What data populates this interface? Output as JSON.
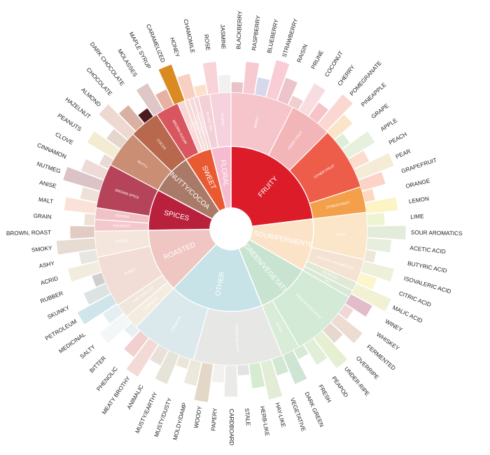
{
  "wheel": {
    "categories": [
      {
        "name": "FRUITY",
        "color": "#dd1c2a",
        "span": [
          0,
          83
        ],
        "subs": [
          {
            "name": "BERRY",
            "color": "#f6c5cb",
            "span": [
              0,
              27
            ]
          },
          {
            "name": "DRIED FRUIT",
            "color": "#f2b5b8",
            "span": [
              27,
              45
            ]
          },
          {
            "name": "OTHER FRUIT",
            "color": "#ee5c4a",
            "span": [
              45,
              72
            ]
          },
          {
            "name": "CITRUS FRUIT",
            "color": "#f4a04b",
            "span": [
              72,
              83
            ]
          }
        ]
      },
      {
        "name": "SOUR/FERMENTED",
        "color": "#fbe3c8",
        "span": [
          83,
          120
        ],
        "subs": [
          {
            "name": "SOUR",
            "color": "#fbe6c9",
            "span": [
              83,
              103
            ]
          },
          {
            "name": "ALCOHOL/FERMENTED",
            "color": "#f4e2d2",
            "span": [
              103,
              113
            ]
          },
          {
            "name": "OLIVE OIL",
            "color": "#dfe9d5",
            "span": [
              113,
              117
            ]
          },
          {
            "name": "RAW",
            "color": "#d9e8d6",
            "span": [
              117,
              120
            ]
          }
        ]
      },
      {
        "name": "GREEN/VEGETATIVE",
        "color": "#c8e3d0",
        "span": [
          120,
          158
        ],
        "subs": [
          {
            "name": "GREEN/VEGETATIVE",
            "color": "#d3ead6",
            "span": [
              120,
              150
            ]
          },
          {
            "name": "BEANY",
            "color": "#d8ecd8",
            "span": [
              150,
              158
            ]
          }
        ]
      },
      {
        "name": "OTHER",
        "color": "#c7e3e8",
        "span": [
          158,
          224
        ],
        "subs": [
          {
            "name": "PAPERY/MUSTY",
            "color": "#e7e7e6",
            "span": [
              158,
              196
            ]
          },
          {
            "name": "CHEMICAL",
            "color": "#dbe9ec",
            "span": [
              196,
              224
            ]
          }
        ]
      },
      {
        "name": "ROASTED",
        "color": "#efc6c2",
        "span": [
          224,
          269
        ],
        "subs": [
          {
            "name": "TOBACCO",
            "color": "#f4ecdf",
            "span": [
              224,
              230
            ]
          },
          {
            "name": "PIPE TOBACCO",
            "color": "#f1e6dc",
            "span": [
              230,
              236
            ]
          },
          {
            "name": "BURNT",
            "color": "#f1ddd6",
            "span": [
              236,
              258
            ]
          },
          {
            "name": "CEREAL",
            "color": "#f4e6dd",
            "span": [
              258,
              269
            ]
          }
        ]
      },
      {
        "name": "SPICES",
        "color": "#b9203c",
        "span": [
          269,
          298
        ],
        "subs": [
          {
            "name": "PUNGENT",
            "color": "#f3c8cc",
            "span": [
              269,
              274
            ]
          },
          {
            "name": "PEPPER",
            "color": "#f1c2c5",
            "span": [
              274,
              279
            ]
          },
          {
            "name": "BROWN SPICE",
            "color": "#b5445a",
            "span": [
              279,
              298
            ]
          }
        ]
      },
      {
        "name": "NUTTY/COCOA",
        "color": "#a97a68",
        "span": [
          298,
          327
        ],
        "subs": [
          {
            "name": "NUTTY",
            "color": "#c98e73",
            "span": [
              298,
              314
            ]
          },
          {
            "name": "COCOA",
            "color": "#b7684d",
            "span": [
              314,
              327
            ]
          }
        ]
      },
      {
        "name": "SWEET",
        "color": "#e95a32",
        "span": [
          327,
          346
        ],
        "subs": [
          {
            "name": "BROWN SUGAR",
            "color": "#d95660",
            "span": [
              327,
              337
            ]
          },
          {
            "name": "VANILLA",
            "color": "#f8d7d6",
            "span": [
              337,
              340
            ]
          },
          {
            "name": "VANILLIN",
            "color": "#f7dad4",
            "span": [
              340,
              342
            ]
          },
          {
            "name": "OVERALL SWEET",
            "color": "#f5d8d8",
            "span": [
              342,
              344
            ]
          },
          {
            "name": "SWEET AROMATICS",
            "color": "#f4d6d9",
            "span": [
              344,
              346
            ]
          }
        ]
      },
      {
        "name": "FLORAL",
        "color": "#f5bcd0",
        "span": [
          346,
          360
        ],
        "subs": [
          {
            "name": "BLACK TEA",
            "color": "#f3d0d6",
            "span": [
              346,
              351
            ]
          },
          {
            "name": "FLORAL",
            "color": "#f6d2de",
            "span": [
              351,
              360
            ]
          }
        ]
      }
    ],
    "leaves": [
      {
        "name": "BLACKBERRY",
        "color": "#e8c3c8"
      },
      {
        "name": "RASPBERRY",
        "color": "#f7c9d1"
      },
      {
        "name": "BLUEBERRY",
        "color": "#d8d8ec"
      },
      {
        "name": "STRAWBERRY",
        "color": "#f9cdd5"
      },
      {
        "name": "RAISIN",
        "color": "#ecc4c9"
      },
      {
        "name": "PRUNE",
        "color": "#f2cdd0"
      },
      {
        "name": "COCONUT",
        "color": "#f8dde0"
      },
      {
        "name": "CHERRY",
        "color": "#f7c3c8"
      },
      {
        "name": "POMEGRANATE",
        "color": "#fbd7d1"
      },
      {
        "name": "PINEAPPLE",
        "color": "#fbe5ca"
      },
      {
        "name": "GRAPE",
        "color": "#e0eed8"
      },
      {
        "name": "APPLE",
        "color": "#e6f0dc"
      },
      {
        "name": "PEACH",
        "color": "#fbdccd"
      },
      {
        "name": "PEAR",
        "color": "#f4ecd6"
      },
      {
        "name": "GRAPEFRUIT",
        "color": "#fbd3c8"
      },
      {
        "name": "ORANGE",
        "color": "#fdd7bf"
      },
      {
        "name": "LEMON",
        "color": "#fdf4c6"
      },
      {
        "name": "LIME",
        "color": "#eef3d2"
      },
      {
        "name": "SOUR AROMATICS",
        "color": "#e3ecda"
      },
      {
        "name": "ACETIC ACID",
        "color": "#e7eedd"
      },
      {
        "name": "BUTYRIC ACID",
        "color": "#ede8da"
      },
      {
        "name": "ISOVALERIC ACID",
        "color": "#eef0dc"
      },
      {
        "name": "CITRIC ACID",
        "color": "#fdf6cc"
      },
      {
        "name": "MALIC ACID",
        "color": "#f2f1d4"
      },
      {
        "name": "WINEY",
        "color": "#e2bccb"
      },
      {
        "name": "WHISKEY",
        "color": "#eed9d6"
      },
      {
        "name": "FERMENTED",
        "color": "#eddcd2"
      },
      {
        "name": "OVERRIPE",
        "color": "#e6d8cf"
      },
      {
        "name": "UNDER-RIPE",
        "color": "#e7efd3"
      },
      {
        "name": "PEAPOD",
        "color": "#e2efd8"
      },
      {
        "name": "FRESH",
        "color": "#d7ead5"
      },
      {
        "name": "DARK GREEN",
        "color": "#cfe5d3"
      },
      {
        "name": "VEGETATIVE",
        "color": "#d2e8d3"
      },
      {
        "name": "HAY-LIKE",
        "color": "#e2ecd6"
      },
      {
        "name": "HERB-LIKE",
        "color": "#d6ecd0"
      },
      {
        "name": "STALE",
        "color": "#e3e3e3"
      },
      {
        "name": "CARDBOARD",
        "color": "#eaeae8"
      },
      {
        "name": "PAPERY",
        "color": "#f3f1ee"
      },
      {
        "name": "WOODY",
        "color": "#e3d8c7"
      },
      {
        "name": "MOLDY/DAMP",
        "color": "#ece8dc"
      },
      {
        "name": "MUSTY/DUSTY",
        "color": "#ebe6da"
      },
      {
        "name": "MUSTY/EARTHY",
        "color": "#e6e4d8"
      },
      {
        "name": "ANIMALIC",
        "color": "#e9e1d9"
      },
      {
        "name": "MEATY BROTHY",
        "color": "#f3dad7"
      },
      {
        "name": "PHENOLIC",
        "color": "#f1d0cf"
      },
      {
        "name": "BITTER",
        "color": "#e7f0f1"
      },
      {
        "name": "SALTY",
        "color": "#f4f7f8"
      },
      {
        "name": "MEDICINAL",
        "color": "#e4eff2"
      },
      {
        "name": "PETROLEUM",
        "color": "#cfe5ea"
      },
      {
        "name": "SKUNKY",
        "color": "#dde2e2"
      },
      {
        "name": "RUBBER",
        "color": "#cfcfcf"
      },
      {
        "name": "ACRID",
        "color": "#f1ecde"
      },
      {
        "name": "ASHY",
        "color": "#e7e6e2"
      },
      {
        "name": "SMOKY",
        "color": "#e6dcd2"
      },
      {
        "name": "BROWN, ROAST",
        "color": "#e2cbc2"
      },
      {
        "name": "GRAIN",
        "color": "#efe1d8"
      },
      {
        "name": "MALT",
        "color": "#fbe2d8"
      },
      {
        "name": "ANISE",
        "color": "#eee2d8"
      },
      {
        "name": "NUTMEG",
        "color": "#dcc3c6"
      },
      {
        "name": "CINNAMON",
        "color": "#eedbd8"
      },
      {
        "name": "CLOVE",
        "color": "#e9dbd4"
      },
      {
        "name": "PEANUTS",
        "color": "#f3ecd2"
      },
      {
        "name": "HAZELNUT",
        "color": "#e4d5cd"
      },
      {
        "name": "ALMOND",
        "color": "#eed9d2"
      },
      {
        "name": "CHOCOLATE",
        "color": "#d9b1a3"
      },
      {
        "name": "DARK CHOCOLATE",
        "color": "#4d1a1f"
      },
      {
        "name": "MOLASSES",
        "color": "#dec7c6"
      },
      {
        "name": "MAPLE SYRUP",
        "color": "#e6b1a1"
      },
      {
        "name": "CARAMELIZED",
        "color": "#d98a20"
      },
      {
        "name": "HONEY",
        "color": "#f8cfc1"
      },
      {
        "name": "CHAMOMILE",
        "color": "#fce0c9"
      },
      {
        "name": "ROSE",
        "color": "#f8d3d8"
      },
      {
        "name": "JASMINE",
        "color": "#f1f1f1"
      }
    ]
  }
}
